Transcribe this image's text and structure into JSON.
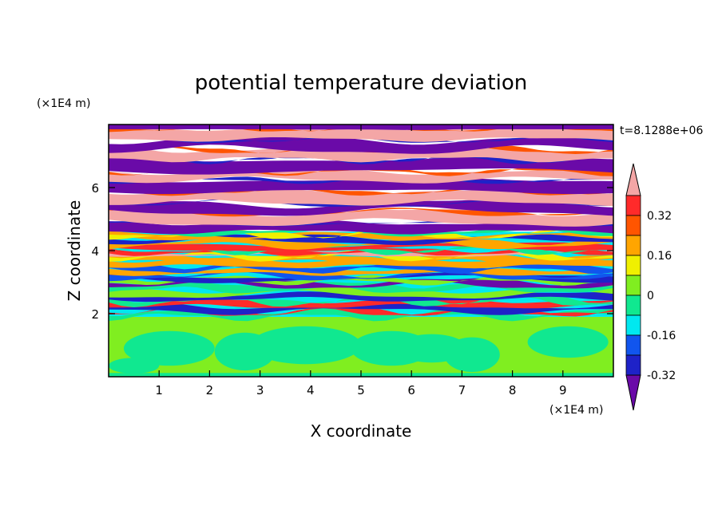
{
  "chart_data": {
    "type": "heatmap",
    "title": "potential temperature deviation",
    "xlabel": "X coordinate",
    "ylabel": "Z coordinate",
    "x_unit": "(×1E4 m)",
    "y_unit": "(×1E4 m)",
    "time_label": "t=8.1288e+06",
    "xlim": [
      0,
      10
    ],
    "ylim": [
      0,
      8
    ],
    "x_ticks": [
      1,
      2,
      3,
      4,
      5,
      6,
      7,
      8,
      9
    ],
    "y_ticks": [
      2,
      4,
      6
    ],
    "colorbar": {
      "levels": [
        -0.4,
        -0.32,
        -0.24,
        -0.16,
        -0.08,
        0,
        0.08,
        0.16,
        0.24,
        0.32,
        0.4
      ],
      "labels": [
        -0.32,
        -0.16,
        0,
        0.16,
        0.32
      ],
      "colors": [
        "#6a0aa8",
        "#1e22c8",
        "#1155ee",
        "#00e8f0",
        "#10e890",
        "#80ee20",
        "#f0f000",
        "#ffa500",
        "#ff5500",
        "#ff2a2a",
        "#f4a6a6"
      ],
      "extend": "both"
    },
    "layers": [
      {
        "z_range": [
          0,
          1.9
        ],
        "description_value": "near 0 to +0.08",
        "dominant_levels": [
          0,
          0.04
        ]
      },
      {
        "z_range": [
          1.9,
          4.6
        ],
        "dominant_levels": [
          -0.32,
          -0.16,
          0,
          0.16,
          0.32
        ]
      },
      {
        "z_range": [
          4.6,
          8
        ],
        "dominant_levels": [
          -0.4,
          0.4
        ]
      }
    ]
  }
}
